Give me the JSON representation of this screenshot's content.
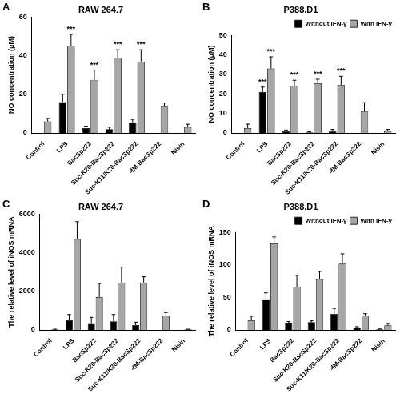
{
  "chart_data": [
    {
      "type": "bar",
      "panel_label": "A",
      "title": "RAW 264.7",
      "y_label": "NO concentration (μM)",
      "categories": [
        "Control",
        "LPS",
        "BacSp222",
        "Suc-K20-BacSp222",
        "Suc-K11/K20-BacSp222",
        "-fM-BacSp222",
        "Nisin"
      ],
      "series": [
        {
          "name": "Without IFN-γ",
          "color": "#000000",
          "values": [
            0,
            16,
            2.5,
            2,
            5.5,
            0,
            0
          ],
          "errors": [
            0,
            4,
            1,
            1,
            1.5,
            0,
            0
          ]
        },
        {
          "name": "With IFN-γ",
          "color": "#a6a6a6",
          "values": [
            6,
            45,
            27.5,
            39,
            37,
            14,
            3
          ],
          "errors": [
            1.5,
            6,
            5,
            4,
            6,
            1.5,
            1.5
          ]
        }
      ],
      "annotations": [
        {
          "text": "***",
          "category": "LPS",
          "series": "With IFN-γ"
        },
        {
          "text": "***",
          "category": "BacSp222",
          "series": "With IFN-γ"
        },
        {
          "text": "***",
          "category": "Suc-K20-BacSp222",
          "series": "With IFN-γ"
        },
        {
          "text": "***",
          "category": "Suc-K11/K20-BacSp222",
          "series": "With IFN-γ"
        }
      ],
      "ylim": [
        0,
        60
      ],
      "yticks": [
        0,
        20,
        40,
        60
      ],
      "grid": false
    },
    {
      "type": "bar",
      "panel_label": "B",
      "title": "P388.D1",
      "y_label": "NO concentration (μM)",
      "categories": [
        "Control",
        "LPS",
        "BacSp222",
        "Suc-K20-BacSp222",
        "Suc-K11/K20-BacSp222",
        "-fM-BacSp222",
        "Nisin"
      ],
      "series": [
        {
          "name": "Without IFN-γ",
          "color": "#000000",
          "values": [
            0,
            21,
            1,
            0.3,
            1,
            0,
            0
          ],
          "errors": [
            0,
            2.5,
            0.5,
            0.3,
            0.8,
            0,
            0
          ]
        },
        {
          "name": "With IFN-γ",
          "color": "#a6a6a6",
          "values": [
            2.5,
            33,
            24,
            25.5,
            24.5,
            11,
            1
          ],
          "errors": [
            2,
            6,
            3,
            2,
            4.5,
            4.5,
            0.8
          ]
        }
      ],
      "annotations": [
        {
          "text": "***",
          "category": "LPS",
          "series": "Without IFN-γ"
        },
        {
          "text": "***",
          "category": "LPS",
          "series": "With IFN-γ"
        },
        {
          "text": "***",
          "category": "BacSp222",
          "series": "With IFN-γ"
        },
        {
          "text": "***",
          "category": "Suc-K20-BacSp222",
          "series": "With IFN-γ"
        },
        {
          "text": "***",
          "category": "Suc-K11/K20-BacSp222",
          "series": "With IFN-γ"
        }
      ],
      "ylim": [
        0,
        50
      ],
      "yticks": [
        0,
        10,
        20,
        30,
        40,
        50
      ],
      "grid": false,
      "legend": "upper right"
    },
    {
      "type": "bar",
      "panel_label": "C",
      "title": "RAW 264.7",
      "y_label": "The relative level of iNOS mRNA",
      "categories": [
        "Control",
        "LPS",
        "BacSp222",
        "Suc-K20-BacSp222",
        "Suc-K11/K20-BacSp222",
        "-fM-BacSp222",
        "Nisin"
      ],
      "series": [
        {
          "name": "Without IFN-γ",
          "color": "#000000",
          "values": [
            0,
            500,
            350,
            450,
            250,
            0,
            0
          ],
          "errors": [
            0,
            300,
            300,
            350,
            150,
            0,
            0
          ]
        },
        {
          "name": "With IFN-γ",
          "color": "#a6a6a6",
          "values": [
            30,
            4700,
            1700,
            2450,
            2450,
            750,
            30
          ],
          "errors": [
            10,
            900,
            700,
            800,
            300,
            150,
            10
          ]
        }
      ],
      "ylim": [
        0,
        6000
      ],
      "yticks": [
        0,
        2000,
        4000,
        6000
      ],
      "grid": false
    },
    {
      "type": "bar",
      "panel_label": "D",
      "title": "P388.D1",
      "y_label": "The relative level of iNOS mRNA",
      "categories": [
        "Control",
        "LPS",
        "BacSp222",
        "Suc-K20-BacSp222",
        "Suc-K11/K20-BacSp222",
        "-fM-BacSp222",
        "Nisin"
      ],
      "series": [
        {
          "name": "Without IFN-γ",
          "color": "#000000",
          "values": [
            0,
            47,
            11,
            12,
            25,
            4,
            1
          ],
          "errors": [
            0,
            10,
            2,
            2,
            8,
            1,
            0.5
          ]
        },
        {
          "name": "With IFN-γ",
          "color": "#a6a6a6",
          "values": [
            15,
            133,
            66,
            78,
            102,
            22,
            7
          ],
          "errors": [
            6,
            10,
            18,
            12,
            15,
            3,
            3
          ]
        }
      ],
      "ylim": [
        0,
        150
      ],
      "yticks": [
        0,
        50,
        100,
        150
      ],
      "grid": false,
      "legend": "upper right"
    }
  ]
}
